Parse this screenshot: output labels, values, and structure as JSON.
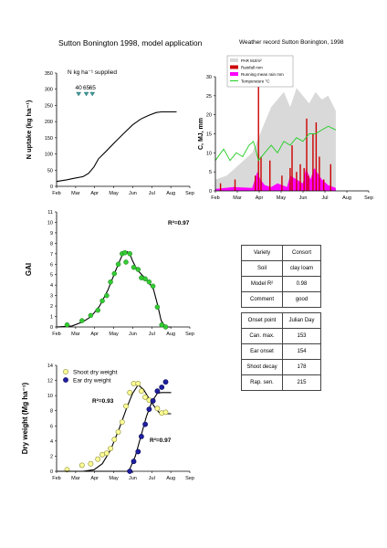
{
  "page": {
    "left_title": "Sutton Bonington 1998, model application",
    "right_title": "Weather record Sutton Bonington, 1998"
  },
  "info_table": {
    "rows": [
      {
        "label": "Variety",
        "value": "Consort"
      },
      {
        "label": "Soil",
        "value": "clay loam"
      },
      {
        "label": "Model R²",
        "value": "0.98"
      },
      {
        "label": "Comment",
        "value": "good"
      }
    ]
  },
  "onset_table": {
    "header": {
      "label": "Onset point",
      "value": "Julian Day"
    },
    "rows": [
      {
        "label": "Can. max.",
        "value": "153"
      },
      {
        "label": "Ear onset",
        "value": "154"
      },
      {
        "label": "Shoot decay",
        "value": "178"
      },
      {
        "label": "Rap. sen.",
        "value": "215"
      }
    ]
  },
  "chart_data": [
    {
      "id": "n_uptake",
      "type": "line",
      "ylabel": "N uptake (kg ha⁻¹)",
      "ylim": [
        0,
        350
      ],
      "yticks": [
        0,
        50,
        100,
        150,
        200,
        250,
        300,
        350
      ],
      "xticks": [
        "Feb",
        "Mar",
        "Apr",
        "May",
        "Jun",
        "Jul",
        "Aug",
        "Sep"
      ],
      "xlim": [
        32,
        274
      ],
      "annotation": "N kg ha⁻¹ supplied",
      "applications": [
        {
          "label": "40",
          "day": 72
        },
        {
          "label": "65",
          "day": 86
        },
        {
          "label": "65",
          "day": 97
        }
      ],
      "series": [
        {
          "x": [
            32,
            50,
            65,
            80,
            90,
            100,
            108,
            120,
            140,
            155,
            170,
            185,
            200,
            213,
            222,
            250
          ],
          "y": [
            15,
            20,
            25,
            30,
            40,
            60,
            85,
            105,
            140,
            165,
            190,
            208,
            220,
            228,
            230,
            230
          ]
        }
      ]
    },
    {
      "id": "weather",
      "type": "line",
      "ylabel": "C, MJ, mm",
      "ylim": [
        0,
        30
      ],
      "yticks": [
        0,
        5,
        10,
        15,
        20,
        25,
        30
      ],
      "xticks": [
        "Feb",
        "Mar",
        "Apr",
        "May",
        "Jun",
        "Jul",
        "Aug",
        "Sep"
      ],
      "xlim": [
        32,
        274
      ],
      "grid": false,
      "legend_position": "top-left",
      "legend": [
        {
          "name": "PAR MJ/m²",
          "color": "#d9d9d9"
        },
        {
          "name": "Rainfall mm",
          "color": "#cc0000"
        },
        {
          "name": "Running mean rain mm",
          "color": "#ff00ff"
        },
        {
          "name": "Temperature °C",
          "color": "#22cc22"
        }
      ],
      "par": {
        "x": [
          32,
          50,
          70,
          90,
          100,
          110,
          120,
          130,
          140,
          150,
          160,
          170,
          180,
          190,
          200,
          210,
          222
        ],
        "y": [
          3,
          4,
          7,
          10,
          14,
          18,
          22,
          24,
          26,
          22,
          27,
          25,
          23,
          26,
          24,
          25,
          21
        ]
      },
      "temperature": {
        "x": [
          32,
          45,
          55,
          65,
          75,
          85,
          92,
          100,
          110,
          120,
          130,
          140,
          150,
          160,
          170,
          180,
          190,
          200,
          210,
          222
        ],
        "y": [
          8,
          11,
          8,
          10,
          9,
          12,
          13,
          8,
          10,
          12,
          10,
          13,
          12,
          14,
          13,
          15,
          15,
          16,
          17,
          16
        ]
      },
      "rain_running_mean": {
        "x": [
          32,
          60,
          90,
          98,
          103,
          110,
          120,
          130,
          145,
          150,
          160,
          170,
          175,
          182,
          188,
          200,
          210,
          222
        ],
        "y": [
          0.5,
          1.0,
          0.8,
          5.0,
          3.0,
          1.5,
          1.0,
          2.0,
          1.0,
          4.0,
          3.0,
          2.0,
          6.0,
          3.0,
          6.0,
          3.0,
          1.5,
          0.8
        ]
      },
      "rainfall": {
        "days": [
          40,
          63,
          95,
          100,
          104,
          118,
          137,
          150,
          153,
          160,
          166,
          172,
          176,
          179,
          186,
          191,
          196,
          203,
          214
        ],
        "values": [
          2,
          3,
          4,
          28,
          9,
          8,
          4,
          6,
          12,
          5,
          7,
          6,
          19,
          4,
          15,
          18,
          9,
          3,
          7
        ]
      }
    },
    {
      "id": "gai",
      "type": "scatter",
      "ylabel": "GAI",
      "ylim": [
        0,
        11
      ],
      "yticks": [
        0,
        1,
        2,
        3,
        4,
        5,
        6,
        7,
        8,
        9,
        10,
        11
      ],
      "xticks": [
        "Feb",
        "Mar",
        "Apr",
        "May",
        "Jun",
        "Jul",
        "Aug",
        "Sep"
      ],
      "xlim": [
        32,
        274
      ],
      "r2_label": "R²=0.97",
      "observed": {
        "x": [
          51,
          78,
          94,
          107,
          115,
          123,
          130,
          137,
          144,
          151,
          156,
          158,
          165,
          172,
          180,
          186,
          193,
          200,
          207,
          215,
          223,
          230
        ],
        "y": [
          0.2,
          0.6,
          1.1,
          1.6,
          2.5,
          3.0,
          4.3,
          5.1,
          6.0,
          7.0,
          7.1,
          6.2,
          7.0,
          5.7,
          5.5,
          4.7,
          4.6,
          4.3,
          3.9,
          1.9,
          0.2,
          0.0
        ]
      },
      "model": {
        "x": [
          32,
          60,
          80,
          95,
          110,
          125,
          140,
          153,
          160,
          165,
          170,
          178,
          190,
          200,
          208,
          215,
          222,
          230,
          240
        ],
        "y": [
          0,
          0.1,
          0.5,
          1.0,
          2.0,
          3.5,
          5.5,
          7.1,
          7.2,
          7.0,
          6.3,
          5.5,
          4.8,
          4.2,
          3.6,
          2.2,
          0.6,
          0.0,
          0.0
        ]
      }
    },
    {
      "id": "dry_weight",
      "type": "scatter",
      "ylabel": "Dry weight (Mg ha⁻¹)",
      "ylim": [
        0,
        14
      ],
      "yticks": [
        0,
        2,
        4,
        6,
        8,
        10,
        12,
        14
      ],
      "xticks": [
        "Feb",
        "Mar",
        "Apr",
        "May",
        "Jun",
        "Jul",
        "Aug",
        "Sep"
      ],
      "xlim": [
        32,
        274
      ],
      "legend_position": "top-left",
      "series": [
        {
          "name": "Shoot dry weight",
          "r2_label": "R²=0.93",
          "color": "#ffff99",
          "observed": {
            "x": [
              51,
              78,
              94,
              107,
              115,
              123,
              130,
              137,
              144,
              151,
              158,
              165,
              172,
              180,
              186,
              193,
              200,
              207,
              215,
              223,
              230
            ],
            "y": [
              0.2,
              0.8,
              1.0,
              1.6,
              2.2,
              2.4,
              3.0,
              4.2,
              5.2,
              6.5,
              8.6,
              10.4,
              11.6,
              11.6,
              10.6,
              9.8,
              9.4,
              9.3,
              8.3,
              7.7,
              7.8
            ]
          },
          "model": {
            "x": [
              32,
              80,
              100,
              115,
              130,
              145,
              160,
              170,
              180,
              190,
              200,
              210,
              220,
              240
            ],
            "y": [
              0,
              0,
              0.2,
              1.0,
              2.8,
              5.5,
              8.5,
              10.3,
              11.4,
              10.8,
              9.6,
              8.5,
              7.6,
              7.6
            ]
          }
        },
        {
          "name": "Ear dry weight",
          "r2_label": "R²=0.97",
          "color": "#1f1fa0",
          "observed": {
            "x": [
              165,
              172,
              180,
              186,
              193,
              200,
              207,
              215,
              223,
              230
            ],
            "y": [
              0.0,
              1.3,
              2.6,
              4.6,
              6.2,
              8.2,
              9.3,
              10.6,
              11.1,
              11.8
            ]
          },
          "model": {
            "x": [
              32,
              160,
              165,
              175,
              185,
              195,
              205,
              215,
              222,
              240
            ],
            "y": [
              0,
              0,
              0.3,
              2.0,
              4.6,
              7.2,
              9.2,
              10.3,
              10.4,
              10.4
            ]
          }
        }
      ]
    }
  ]
}
